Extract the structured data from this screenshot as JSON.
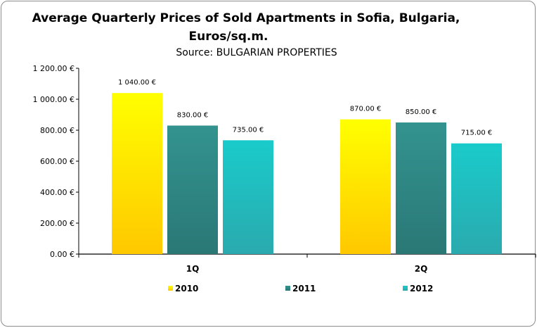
{
  "chart_data": {
    "type": "bar",
    "title": "Average Quarterly Prices of Sold Apartments in Sofia, Bulgaria,",
    "title_line2": "Euros/sq.m.",
    "subtitle": "Source: BULGARIAN PROPERTIES",
    "categories": [
      "1Q",
      "2Q"
    ],
    "series": [
      {
        "name": "2010",
        "values": [
          1040,
          870
        ],
        "labels": [
          "1 040.00 €",
          "870.00 €"
        ],
        "color": "#FFE600",
        "color_top": "#FFFF00",
        "color_bottom": "#FFC800"
      },
      {
        "name": "2011",
        "values": [
          830,
          850
        ],
        "labels": [
          "830.00 €",
          "850.00 €"
        ],
        "color": "#2E8B87",
        "color_top": "#33938F",
        "color_bottom": "#2A7876"
      },
      {
        "name": "2012",
        "values": [
          735,
          715
        ],
        "labels": [
          "735.00 €",
          "715.00 €"
        ],
        "color": "#1FC4C4",
        "color_top": "#1ACBCB",
        "color_bottom": "#2AAAAE"
      }
    ],
    "yticks": [
      "0.00 €",
      "200.00 €",
      "400.00 €",
      "600.00 €",
      "800.00 €",
      "1 000.00 €",
      "1 200.00 €"
    ],
    "ylim": [
      0,
      1200
    ],
    "ystep": 200,
    "grid": false,
    "legend": "bottom"
  }
}
